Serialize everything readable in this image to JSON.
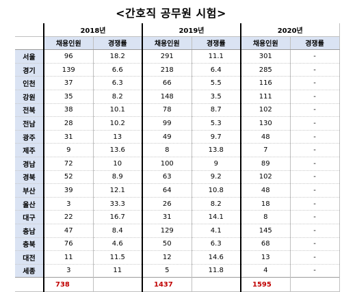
{
  "title": "<간호직 공무원 시험>",
  "years": [
    "2018년",
    "2019년",
    "2020년"
  ],
  "columns": {
    "hires": "채용인원",
    "ratio": "경쟁률"
  },
  "rows": [
    {
      "region": "서울",
      "y2018_hires": "96",
      "y2018_ratio": "18.2",
      "y2019_hires": "291",
      "y2019_ratio": "11.1",
      "y2020_hires": "301",
      "y2020_ratio": "-"
    },
    {
      "region": "경기",
      "y2018_hires": "139",
      "y2018_ratio": "6.6",
      "y2019_hires": "218",
      "y2019_ratio": "6.4",
      "y2020_hires": "285",
      "y2020_ratio": "-"
    },
    {
      "region": "인천",
      "y2018_hires": "37",
      "y2018_ratio": "6.3",
      "y2019_hires": "66",
      "y2019_ratio": "5.5",
      "y2020_hires": "116",
      "y2020_ratio": "-"
    },
    {
      "region": "강원",
      "y2018_hires": "35",
      "y2018_ratio": "8.2",
      "y2019_hires": "148",
      "y2019_ratio": "3.5",
      "y2020_hires": "111",
      "y2020_ratio": "-"
    },
    {
      "region": "전북",
      "y2018_hires": "38",
      "y2018_ratio": "10.1",
      "y2019_hires": "78",
      "y2019_ratio": "8.7",
      "y2020_hires": "102",
      "y2020_ratio": "-"
    },
    {
      "region": "전남",
      "y2018_hires": "28",
      "y2018_ratio": "10.2",
      "y2019_hires": "99",
      "y2019_ratio": "5.3",
      "y2020_hires": "130",
      "y2020_ratio": "-"
    },
    {
      "region": "광주",
      "y2018_hires": "31",
      "y2018_ratio": "13",
      "y2019_hires": "49",
      "y2019_ratio": "9.7",
      "y2020_hires": "48",
      "y2020_ratio": "-"
    },
    {
      "region": "제주",
      "y2018_hires": "9",
      "y2018_ratio": "13.6",
      "y2019_hires": "8",
      "y2019_ratio": "13.8",
      "y2020_hires": "7",
      "y2020_ratio": "-"
    },
    {
      "region": "경남",
      "y2018_hires": "72",
      "y2018_ratio": "10",
      "y2019_hires": "100",
      "y2019_ratio": "9",
      "y2020_hires": "89",
      "y2020_ratio": "-"
    },
    {
      "region": "경북",
      "y2018_hires": "52",
      "y2018_ratio": "8.9",
      "y2019_hires": "63",
      "y2019_ratio": "9.2",
      "y2020_hires": "102",
      "y2020_ratio": "-"
    },
    {
      "region": "부산",
      "y2018_hires": "39",
      "y2018_ratio": "12.1",
      "y2019_hires": "64",
      "y2019_ratio": "10.8",
      "y2020_hires": "48",
      "y2020_ratio": "-"
    },
    {
      "region": "울산",
      "y2018_hires": "3",
      "y2018_ratio": "33.3",
      "y2019_hires": "26",
      "y2019_ratio": "8.2",
      "y2020_hires": "18",
      "y2020_ratio": "-"
    },
    {
      "region": "대구",
      "y2018_hires": "22",
      "y2018_ratio": "16.7",
      "y2019_hires": "31",
      "y2019_ratio": "14.1",
      "y2020_hires": "8",
      "y2020_ratio": "-"
    },
    {
      "region": "충남",
      "y2018_hires": "47",
      "y2018_ratio": "8.4",
      "y2019_hires": "129",
      "y2019_ratio": "4.1",
      "y2020_hires": "145",
      "y2020_ratio": "-"
    },
    {
      "region": "충북",
      "y2018_hires": "76",
      "y2018_ratio": "4.6",
      "y2019_hires": "50",
      "y2019_ratio": "6.3",
      "y2020_hires": "68",
      "y2020_ratio": "-"
    },
    {
      "region": "대전",
      "y2018_hires": "11",
      "y2018_ratio": "11.5",
      "y2019_hires": "12",
      "y2019_ratio": "14.6",
      "y2020_hires": "13",
      "y2020_ratio": "-"
    },
    {
      "region": "세종",
      "y2018_hires": "3",
      "y2018_ratio": "11",
      "y2019_hires": "5",
      "y2019_ratio": "11.8",
      "y2020_hires": "4",
      "y2020_ratio": "-"
    }
  ],
  "totals": {
    "y2018_hires": "738",
    "y2019_hires": "1437",
    "y2020_hires": "1595"
  },
  "colors": {
    "header_fill": "#dae3f3",
    "total_text": "#c00000"
  }
}
